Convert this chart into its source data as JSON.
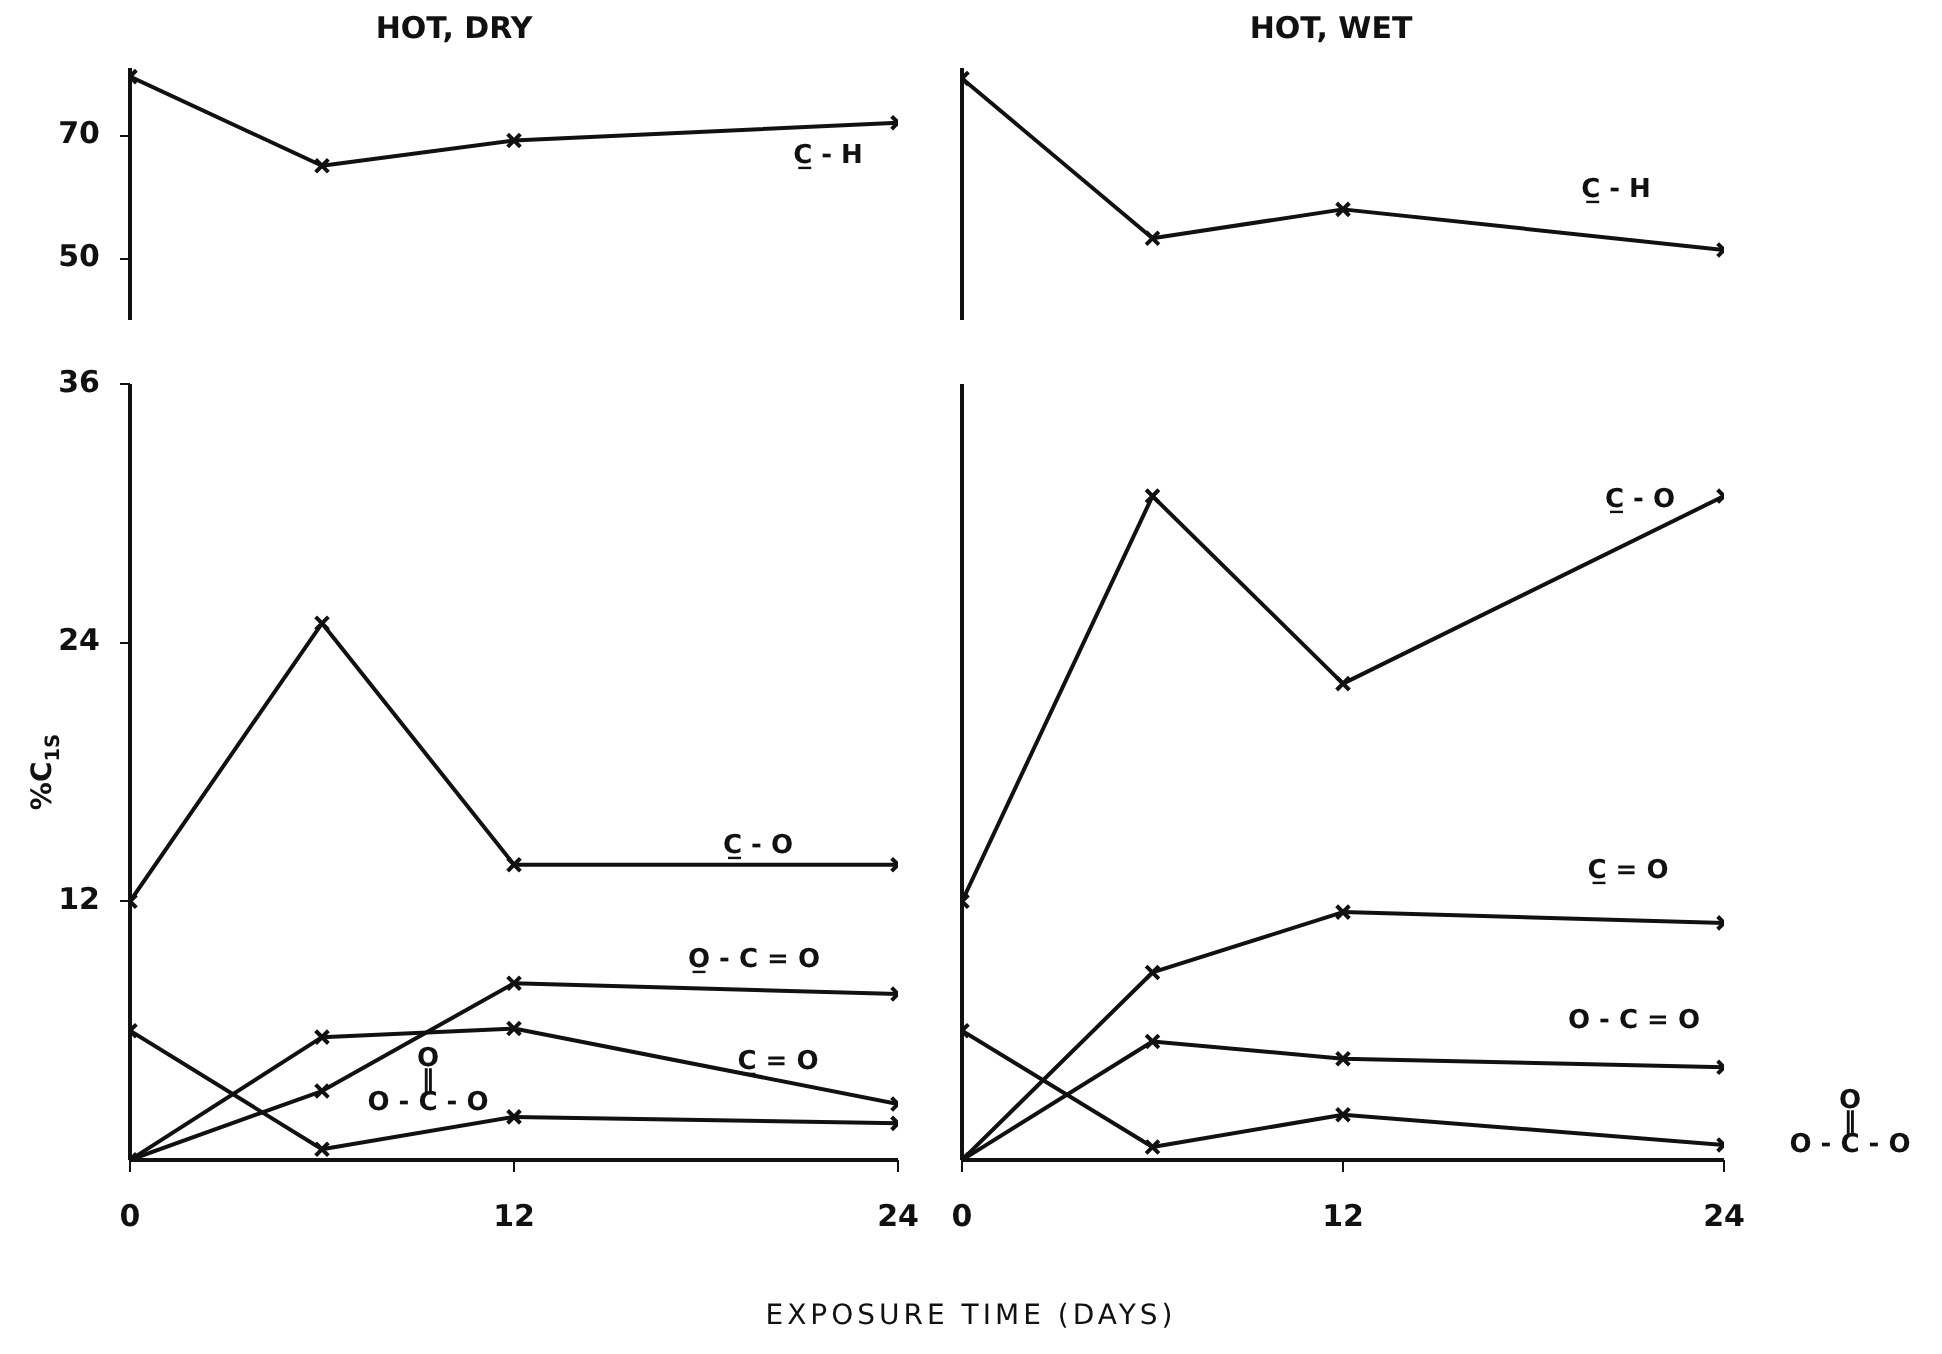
{
  "chart_data": [
    {
      "type": "line",
      "title": "HOT, DRY",
      "x": [
        0,
        6,
        12,
        24
      ],
      "xlim": [
        0,
        24
      ],
      "xticks": [
        0,
        12,
        24
      ],
      "ylim": [
        40,
        81
      ],
      "yticks": [
        50,
        70
      ],
      "grid": false,
      "marker": "cross",
      "line_style": "solid",
      "tick_labels": "y",
      "series": [
        {
          "name": "C̲ - H",
          "color": "#111111",
          "values": [
            79.6,
            65.1,
            69.2,
            72.1
          ]
        }
      ]
    },
    {
      "type": "line",
      "title": "HOT, WET",
      "x": [
        0,
        6,
        12,
        24
      ],
      "xlim": [
        0,
        24
      ],
      "xticks": [
        0,
        12,
        24
      ],
      "ylim": [
        40,
        81
      ],
      "yticks": [
        50,
        70
      ],
      "grid": false,
      "marker": "cross",
      "line_style": "solid",
      "tick_labels": false,
      "series": [
        {
          "name": "C̲ - H",
          "color": "#111111",
          "values": [
            79.3,
            53.3,
            58.0,
            51.4
          ]
        }
      ]
    },
    {
      "type": "line",
      "xlabel": "EXPOSURE TIME (DAYS)",
      "ylabel": "%C$_{1S}$",
      "x": [
        0,
        6,
        12,
        24
      ],
      "xlim": [
        0,
        24
      ],
      "xticks": [
        0,
        12,
        24
      ],
      "ylim": [
        0,
        36
      ],
      "yticks": [
        12,
        24,
        36
      ],
      "grid": false,
      "marker": "cross",
      "line_style": "solid",
      "series": [
        {
          "name": "C̲ - O",
          "color": "#111111",
          "values": [
            12,
            24.9,
            13.7,
            13.7
          ]
        },
        {
          "name": "O̲ - C = O",
          "color": "#111111",
          "values": [
            0,
            3.2,
            8.2,
            7.7
          ]
        },
        {
          "name": "C̲ = O",
          "color": "#111111",
          "values": [
            0,
            5.7,
            6.1,
            2.6
          ]
        },
        {
          "name": "O\n‖\nO - C - O",
          "color": "#111111",
          "values": [
            6.0,
            0.5,
            2.0,
            1.7
          ]
        }
      ]
    },
    {
      "type": "line",
      "x": [
        0,
        6,
        12,
        24
      ],
      "xlim": [
        0,
        24
      ],
      "xticks": [
        0,
        12,
        24
      ],
      "ylim": [
        0,
        36
      ],
      "yticks": [
        12,
        24,
        36
      ],
      "grid": false,
      "marker": "cross",
      "line_style": "solid",
      "tick_labels": "x",
      "series": [
        {
          "name": "C̲ - O",
          "color": "#111111",
          "values": [
            12,
            30.8,
            22.1,
            30.8
          ]
        },
        {
          "name": "C̲ = O",
          "color": "#111111",
          "values": [
            0,
            8.7,
            11.5,
            11.0
          ]
        },
        {
          "name": "O - C = O",
          "color": "#111111",
          "values": [
            0,
            5.5,
            4.7,
            4.3
          ]
        },
        {
          "name": "O\n‖\nO - C - O",
          "color": "#111111",
          "values": [
            6.0,
            0.6,
            2.1,
            0.7
          ]
        }
      ]
    }
  ]
}
